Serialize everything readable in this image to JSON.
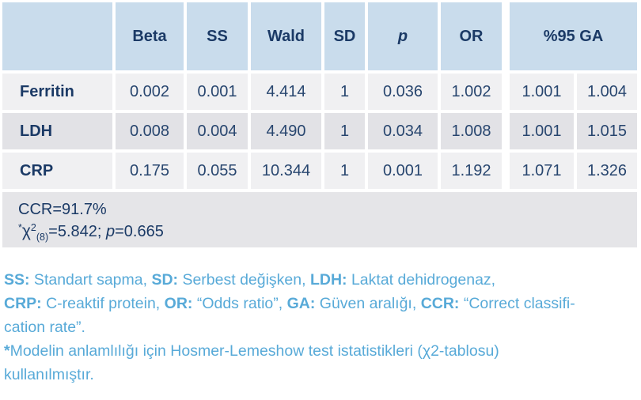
{
  "colors": {
    "header_bg": "#c9dcec",
    "row_light": "#f0f0f2",
    "row_dark": "#e2e2e6",
    "band_bg": "#e5e5e8",
    "navy_strong": "#1b3a66",
    "navy_value": "#28466f",
    "note_blue": "#58aad8",
    "page_bg": "#ffffff"
  },
  "table": {
    "header": {
      "corner": "",
      "beta": "Beta",
      "ss": "SS",
      "wald": "Wald",
      "sd": "SD",
      "p": "p",
      "or": "OR",
      "ga": "%95 GA"
    },
    "rows": [
      {
        "label": "Ferritin",
        "values": [
          "0.002",
          "0.001",
          "4.414",
          "1",
          "0.036",
          "1.002",
          "1.001",
          "1.004"
        ]
      },
      {
        "label": "LDH",
        "values": [
          "0.008",
          "0.004",
          "4.490",
          "1",
          "0.034",
          "1.008",
          "1.001",
          "1.015"
        ]
      },
      {
        "label": "CRP",
        "values": [
          "0.175",
          "0.055",
          "10.344",
          "1",
          "0.001",
          "1.192",
          "1.071",
          "1.326"
        ]
      }
    ],
    "summary": {
      "ccr": "CCR=91.7%",
      "star": "*",
      "chi": "χ",
      "chi_sup": "2",
      "chi_sub": "(8)",
      "chi_value": "=5.842; ",
      "p_label": "p",
      "p_value": "=0.665"
    }
  },
  "footnotes": {
    "abbreviations": [
      {
        "t": "SS:",
        "b": true
      },
      {
        "t": " Standart sapma, "
      },
      {
        "t": "SD:",
        "b": true
      },
      {
        "t": " Serbest değişken, "
      },
      {
        "t": "LDH:",
        "b": true
      },
      {
        "t": " Laktat dehidrogenaz, "
      },
      {
        "br": true
      },
      {
        "t": "CRP:",
        "b": true
      },
      {
        "t": " C-reaktif protein, "
      },
      {
        "t": "OR:",
        "b": true
      },
      {
        "t": " “Odds ratio”, "
      },
      {
        "t": "GA:",
        "b": true
      },
      {
        "t": " Güven aralığı, "
      },
      {
        "t": "CCR:",
        "b": true
      },
      {
        "t": " “Correct classifi-"
      },
      {
        "br": true
      },
      {
        "t": "cation rate”."
      }
    ],
    "model_note": [
      {
        "t": "*",
        "b": true
      },
      {
        "t": "Modelin anlamlılığı için Hosmer-Lemeshow test istatistikleri (χ2-tablosu)"
      },
      {
        "br": true
      },
      {
        "t": "kullanılmıştır."
      }
    ]
  }
}
